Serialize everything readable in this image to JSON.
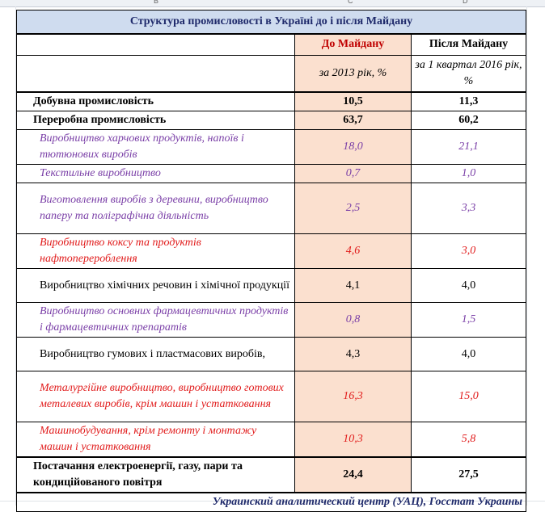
{
  "sheet": {
    "columns": [
      "B",
      "C",
      "D"
    ]
  },
  "table": {
    "title": "Структура промисловості в Україні до і після Майдану",
    "col_before": "До Майдану",
    "col_after": "Після Майдану",
    "sub_before": "за 2013 рік, %",
    "sub_after": "за 1 квартал 2016 рік, %",
    "rows": [
      {
        "label": "Добувна промисловість",
        "before": "10,5",
        "after": "11,3"
      },
      {
        "label": "Переробна промисловість",
        "before": "63,7",
        "after": "60,2"
      },
      {
        "label": "Виробництво харчових продуктів, напоїв і тютюнових виробів",
        "before": "18,0",
        "after": "21,1"
      },
      {
        "label": "Текстильне виробництво",
        "before": "0,7",
        "after": "1,0"
      },
      {
        "label": "Виготовлення виробів з деревини, виробництво паперу та поліграфічна діяльність",
        "before": "2,5",
        "after": "3,3"
      },
      {
        "label": "Виробництво коксу та продуктів нафтоперероблення",
        "before": "4,6",
        "after": "3,0"
      },
      {
        "label": "Виробництво хімічних речовин і хімічної продукції",
        "before": "4,1",
        "after": "4,0"
      },
      {
        "label": "Виробництво основних фармацевтичних продуктів і фармацевтичних препаратів",
        "before": "0,8",
        "after": "1,5"
      },
      {
        "label": "Виробництво гумових і пластмасових виробів,",
        "before": "4,3",
        "after": "4,0"
      },
      {
        "label": "Металургійне виробництво, виробництво готових металевих виробів, крім машин і устатковання",
        "before": "16,3",
        "after": "15,0"
      },
      {
        "label": "Машинобудування, крім ремонту і монтажу машин і устатковання",
        "before": "10,3",
        "after": "5,8"
      },
      {
        "label": "Постачання електроенергії, газу, пари та кондиційованого повітря",
        "before": "24,4",
        "after": "27,5"
      }
    ],
    "source": "Украинский аналитический центр (УАЦ), Госстат Украины"
  },
  "colors": {
    "title_bg": "#cfdcef",
    "before_bg": "#fbe0cf",
    "purple": "#7a3fa7",
    "red": "#e11b1b",
    "navy": "#1f2a6b"
  }
}
